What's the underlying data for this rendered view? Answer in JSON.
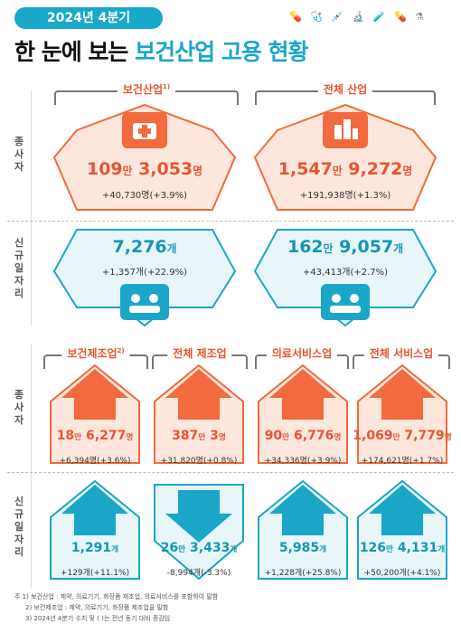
{
  "header": {
    "badge": "2024년 4분기",
    "title_prefix": "한 눈에 보는 ",
    "title_highlight": "보건산업 고용 현황",
    "deco_icons": [
      "pills-icon",
      "stethoscope-icon",
      "syringe-icon",
      "microscope-icon",
      "dropper-icon",
      "capsule-icon",
      "lab-icon"
    ]
  },
  "row_labels": {
    "employees": [
      "종",
      "사",
      "자"
    ],
    "new_jobs": [
      "신",
      "규",
      "일",
      "자",
      "리"
    ]
  },
  "top": {
    "health": {
      "label": "보건산업",
      "label_sup": "1)",
      "employees_big": "109",
      "employees_unit1": "만",
      "employees_rest": " 3,053",
      "employees_unit2": "명",
      "employees_change": "+40,730명(+3.9%)",
      "newjobs_big": "7,276",
      "newjobs_unit": "개",
      "newjobs_change": "+1,357개(+22.9%)"
    },
    "all": {
      "label": "전체 산업",
      "employees_big": "1,547",
      "employees_unit1": "만",
      "employees_rest": " 9,272",
      "employees_unit2": "명",
      "employees_change": "+191,938명(+1.3%)",
      "newjobs_big": "162",
      "newjobs_unit1": "만",
      "newjobs_rest": " 9,057",
      "newjobs_unit2": "개",
      "newjobs_change": "+43,413개(+2.7%)"
    }
  },
  "bottom": [
    {
      "label": "보건제조업",
      "label_sup": "2)",
      "emp_big": "18",
      "emp_unit1": "만",
      "emp_rest": " 6,277",
      "emp_unit2": "명",
      "emp_change": "+6,394명(+3.6%)",
      "jobs_value": "1,291",
      "jobs_unit": "개",
      "jobs_change": "+129개(+11.1%)"
    },
    {
      "label": "전체 제조업",
      "emp_big": "387",
      "emp_unit1": "만",
      "emp_rest": " 3",
      "emp_unit2": "명",
      "emp_change": "+31,820명(+0.8%)",
      "jobs_value": "26",
      "jobs_unit1": "만",
      "jobs_rest": " 3,433",
      "jobs_unit": "개",
      "jobs_change": "-8,994개(-3.3%)"
    },
    {
      "label": "의료서비스업",
      "emp_big": "90",
      "emp_unit1": "만",
      "emp_rest": " 6,776",
      "emp_unit2": "명",
      "emp_change": "+34,336명(+3.9%)",
      "jobs_value": "5,985",
      "jobs_unit": "개",
      "jobs_change": "+1,228개(+25.8%)"
    },
    {
      "label": "전체 서비스업",
      "emp_big": "1,069",
      "emp_unit1": "만",
      "emp_rest": " 7,779",
      "emp_unit2": "명",
      "emp_change": "+174,621명(+1.7%)",
      "jobs_value": "126",
      "jobs_unit1": "만",
      "jobs_rest": " 4,131",
      "jobs_unit": "개",
      "jobs_change": "+50,200개(+4.1%)"
    }
  ],
  "footnotes": [
    "주  1) 보건산업 : 제약, 의료기기, 화장품 제조업, 의료서비스를 포함하여 말함",
    "2) 보건제조업 : 제약, 의료기기, 화장품 제조업을 말함",
    "3) 2024년 4분기 수치 및 (   )는 전년 동기 대비 증감임"
  ],
  "colors": {
    "orange": "#f26a3d",
    "orange_dark": "#e8552f",
    "teal": "#1ba6c8",
    "teal_light": "#e8f6f9",
    "peach": "#fde7dc"
  }
}
